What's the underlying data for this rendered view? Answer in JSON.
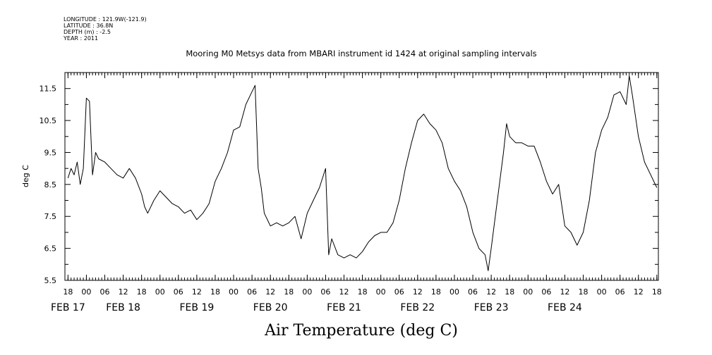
{
  "header": {
    "longitude": "LONGITUDE : 121.9W(-121.9)",
    "latitude": "LATITUDE : 36.8N",
    "depth": "DEPTH (m) : -2.5",
    "year": "YEAR : 2011",
    "title": "Mooring M0 Metsys data from MBARI instrument id 1424 at original sampling intervals"
  },
  "chart_data": {
    "type": "line",
    "title": "Mooring M0 Metsys data from MBARI instrument id 1424 at original sampling intervals",
    "xlabel": "Air Temperature (deg C)",
    "ylabel": "deg C",
    "ylim": [
      5.5,
      12.0
    ],
    "xlim": [
      "2011-02-16T17:00",
      "2011-02-24T18:30"
    ],
    "yticks": [
      5.5,
      6.5,
      7.5,
      8.5,
      9.5,
      10.5,
      11.5
    ],
    "ytick_labels": [
      "5.5",
      "6.5",
      "7.5",
      "8.5",
      "9.5",
      "10.5",
      "11.5"
    ],
    "xticks_hour": [
      "2011-02-16T18:00",
      "2011-02-17T00:00",
      "2011-02-17T06:00",
      "2011-02-17T12:00",
      "2011-02-17T18:00",
      "2011-02-18T00:00",
      "2011-02-18T06:00",
      "2011-02-18T12:00",
      "2011-02-18T18:00",
      "2011-02-19T00:00",
      "2011-02-19T06:00",
      "2011-02-19T12:00",
      "2011-02-19T18:00",
      "2011-02-20T00:00",
      "2011-02-20T06:00",
      "2011-02-20T12:00",
      "2011-02-20T18:00",
      "2011-02-21T00:00",
      "2011-02-21T06:00",
      "2011-02-21T12:00",
      "2011-02-21T18:00",
      "2011-02-22T00:00",
      "2011-02-22T06:00",
      "2011-02-22T12:00",
      "2011-02-22T18:00",
      "2011-02-23T00:00",
      "2011-02-23T06:00",
      "2011-02-23T12:00",
      "2011-02-23T18:00",
      "2011-02-24T00:00",
      "2011-02-24T06:00",
      "2011-02-24T12:00",
      "2011-02-24T18:00"
    ],
    "xtick_hour_labels": [
      "18",
      "00",
      "06",
      "12",
      "18",
      "00",
      "06",
      "12",
      "18",
      "00",
      "06",
      "12",
      "18",
      "00",
      "06",
      "12",
      "18",
      "00",
      "06",
      "12",
      "18",
      "00",
      "06",
      "12",
      "18",
      "00",
      "06",
      "12",
      "18",
      "00",
      "06",
      "12",
      "18"
    ],
    "day_labels": [
      {
        "label": "FEB 17",
        "x": "2011-02-16T18:00"
      },
      {
        "label": "FEB 18",
        "x": "2011-02-17T12:00"
      },
      {
        "label": "FEB 19",
        "x": "2011-02-18T12:00"
      },
      {
        "label": "FEB 20",
        "x": "2011-02-19T12:00"
      },
      {
        "label": "FEB 21",
        "x": "2011-02-20T12:00"
      },
      {
        "label": "FEB 22",
        "x": "2011-02-21T12:00"
      },
      {
        "label": "FEB 23",
        "x": "2011-02-22T12:00"
      },
      {
        "label": "FEB 24",
        "x": "2011-02-23T12:00"
      }
    ],
    "series": [
      {
        "color": "#000000",
        "points": [
          [
            "2011-02-16T18:00",
            8.7
          ],
          [
            "2011-02-16T19:00",
            9.0
          ],
          [
            "2011-02-16T20:00",
            8.8
          ],
          [
            "2011-02-16T21:00",
            9.2
          ],
          [
            "2011-02-16T22:00",
            8.5
          ],
          [
            "2011-02-16T23:00",
            9.0
          ],
          [
            "2011-02-17T00:00",
            11.2
          ],
          [
            "2011-02-17T01:00",
            11.1
          ],
          [
            "2011-02-17T02:00",
            8.8
          ],
          [
            "2011-02-17T03:00",
            9.5
          ],
          [
            "2011-02-17T04:00",
            9.3
          ],
          [
            "2011-02-17T06:00",
            9.2
          ],
          [
            "2011-02-17T08:00",
            9.0
          ],
          [
            "2011-02-17T10:00",
            8.8
          ],
          [
            "2011-02-17T12:00",
            8.7
          ],
          [
            "2011-02-17T14:00",
            9.0
          ],
          [
            "2011-02-17T16:00",
            8.7
          ],
          [
            "2011-02-17T18:00",
            8.2
          ],
          [
            "2011-02-17T19:00",
            7.8
          ],
          [
            "2011-02-17T20:00",
            7.6
          ],
          [
            "2011-02-17T22:00",
            8.0
          ],
          [
            "2011-02-18T00:00",
            8.3
          ],
          [
            "2011-02-18T02:00",
            8.1
          ],
          [
            "2011-02-18T04:00",
            7.9
          ],
          [
            "2011-02-18T06:00",
            7.8
          ],
          [
            "2011-02-18T08:00",
            7.6
          ],
          [
            "2011-02-18T10:00",
            7.7
          ],
          [
            "2011-02-18T12:00",
            7.4
          ],
          [
            "2011-02-18T14:00",
            7.6
          ],
          [
            "2011-02-18T16:00",
            7.9
          ],
          [
            "2011-02-18T18:00",
            8.6
          ],
          [
            "2011-02-18T20:00",
            9.0
          ],
          [
            "2011-02-18T22:00",
            9.5
          ],
          [
            "2011-02-19T00:00",
            10.2
          ],
          [
            "2011-02-19T02:00",
            10.3
          ],
          [
            "2011-02-19T04:00",
            11.0
          ],
          [
            "2011-02-19T06:00",
            11.4
          ],
          [
            "2011-02-19T07:00",
            11.6
          ],
          [
            "2011-02-19T08:00",
            9.0
          ],
          [
            "2011-02-19T09:00",
            8.4
          ],
          [
            "2011-02-19T10:00",
            7.6
          ],
          [
            "2011-02-19T12:00",
            7.2
          ],
          [
            "2011-02-19T14:00",
            7.3
          ],
          [
            "2011-02-19T16:00",
            7.2
          ],
          [
            "2011-02-19T18:00",
            7.3
          ],
          [
            "2011-02-19T20:00",
            7.5
          ],
          [
            "2011-02-19T22:00",
            6.8
          ],
          [
            "2011-02-20T00:00",
            7.6
          ],
          [
            "2011-02-20T02:00",
            8.0
          ],
          [
            "2011-02-20T04:00",
            8.4
          ],
          [
            "2011-02-20T06:00",
            9.0
          ],
          [
            "2011-02-20T07:00",
            6.3
          ],
          [
            "2011-02-20T08:00",
            6.8
          ],
          [
            "2011-02-20T10:00",
            6.3
          ],
          [
            "2011-02-20T12:00",
            6.2
          ],
          [
            "2011-02-20T14:00",
            6.3
          ],
          [
            "2011-02-20T16:00",
            6.2
          ],
          [
            "2011-02-20T18:00",
            6.4
          ],
          [
            "2011-02-20T20:00",
            6.7
          ],
          [
            "2011-02-20T22:00",
            6.9
          ],
          [
            "2011-02-21T00:00",
            7.0
          ],
          [
            "2011-02-21T02:00",
            7.0
          ],
          [
            "2011-02-21T04:00",
            7.3
          ],
          [
            "2011-02-21T06:00",
            8.0
          ],
          [
            "2011-02-21T08:00",
            9.0
          ],
          [
            "2011-02-21T10:00",
            9.8
          ],
          [
            "2011-02-21T12:00",
            10.5
          ],
          [
            "2011-02-21T14:00",
            10.7
          ],
          [
            "2011-02-21T16:00",
            10.4
          ],
          [
            "2011-02-21T18:00",
            10.2
          ],
          [
            "2011-02-21T20:00",
            9.8
          ],
          [
            "2011-02-21T22:00",
            9.0
          ],
          [
            "2011-02-22T00:00",
            8.6
          ],
          [
            "2011-02-22T02:00",
            8.3
          ],
          [
            "2011-02-22T04:00",
            7.8
          ],
          [
            "2011-02-22T06:00",
            7.0
          ],
          [
            "2011-02-22T08:00",
            6.5
          ],
          [
            "2011-02-22T10:00",
            6.3
          ],
          [
            "2011-02-22T11:00",
            5.8
          ],
          [
            "2011-02-22T12:00",
            6.5
          ],
          [
            "2011-02-22T14:00",
            8.0
          ],
          [
            "2011-02-22T16:00",
            9.5
          ],
          [
            "2011-02-22T17:00",
            10.4
          ],
          [
            "2011-02-22T18:00",
            10.0
          ],
          [
            "2011-02-22T20:00",
            9.8
          ],
          [
            "2011-02-22T22:00",
            9.8
          ],
          [
            "2011-02-23T00:00",
            9.7
          ],
          [
            "2011-02-23T02:00",
            9.7
          ],
          [
            "2011-02-23T04:00",
            9.2
          ],
          [
            "2011-02-23T06:00",
            8.6
          ],
          [
            "2011-02-23T08:00",
            8.2
          ],
          [
            "2011-02-23T10:00",
            8.5
          ],
          [
            "2011-02-23T12:00",
            7.2
          ],
          [
            "2011-02-23T14:00",
            7.0
          ],
          [
            "2011-02-23T16:00",
            6.6
          ],
          [
            "2011-02-23T18:00",
            7.0
          ],
          [
            "2011-02-23T20:00",
            8.0
          ],
          [
            "2011-02-23T22:00",
            9.5
          ],
          [
            "2011-02-24T00:00",
            10.2
          ],
          [
            "2011-02-24T02:00",
            10.6
          ],
          [
            "2011-02-24T04:00",
            11.3
          ],
          [
            "2011-02-24T06:00",
            11.4
          ],
          [
            "2011-02-24T08:00",
            11.0
          ],
          [
            "2011-02-24T09:00",
            11.9
          ],
          [
            "2011-02-24T10:00",
            11.3
          ],
          [
            "2011-02-24T12:00",
            10.0
          ],
          [
            "2011-02-24T14:00",
            9.2
          ],
          [
            "2011-02-24T16:00",
            8.8
          ],
          [
            "2011-02-24T18:00",
            8.4
          ]
        ]
      }
    ]
  },
  "xaxis_rescaled_note": ""
}
